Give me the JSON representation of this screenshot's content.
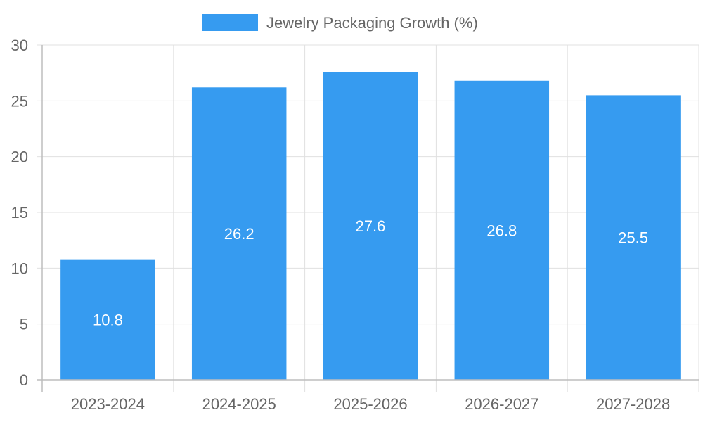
{
  "chart_data": {
    "type": "bar",
    "categories": [
      "2023-2024",
      "2024-2025",
      "2025-2026",
      "2026-2027",
      "2027-2028"
    ],
    "series": [
      {
        "name": "Jewelry Packaging Growth (%)",
        "values": [
          10.8,
          26.2,
          27.6,
          26.8,
          25.5
        ],
        "color": "#369bf0"
      }
    ],
    "data_labels": [
      "10.8",
      "26.2",
      "27.6",
      "26.8",
      "25.5"
    ],
    "y_ticks": [
      0,
      5,
      10,
      15,
      20,
      25,
      30
    ],
    "ylim": [
      0,
      30
    ],
    "grid": true,
    "legend_position": "top-center",
    "colors": {
      "bar": "#369bf0",
      "grid": "#e0e0e0",
      "axis": "#bdbdbd",
      "text": "#666666",
      "data_label": "#ffffff"
    }
  }
}
